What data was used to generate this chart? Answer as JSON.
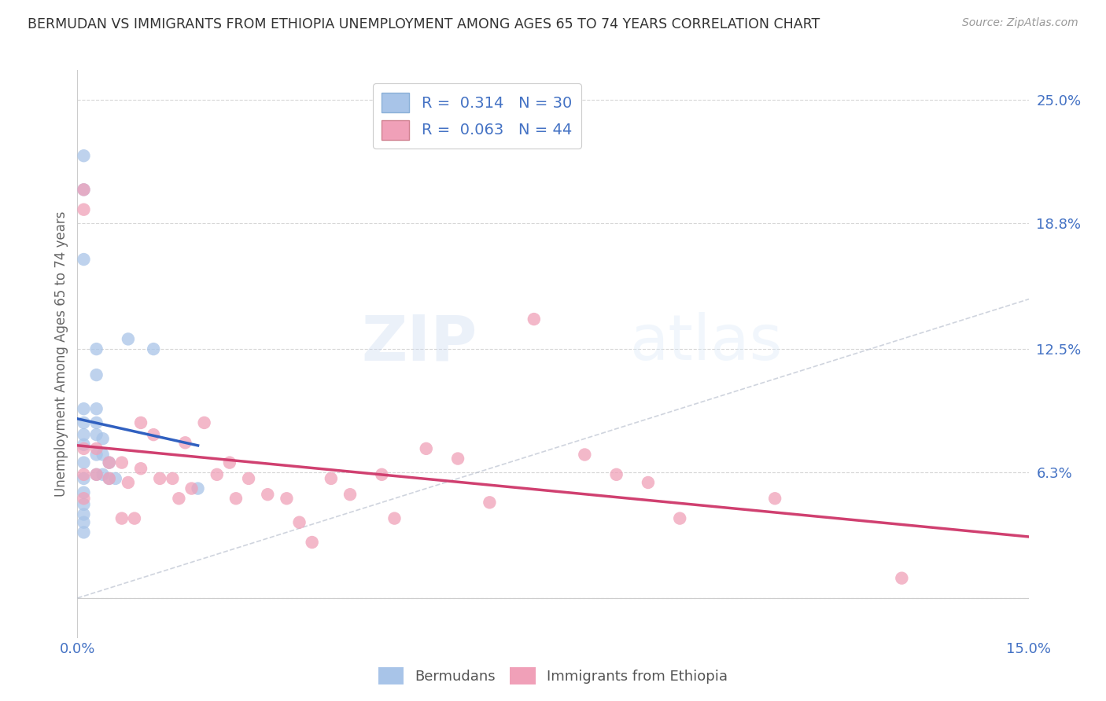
{
  "title": "BERMUDAN VS IMMIGRANTS FROM ETHIOPIA UNEMPLOYMENT AMONG AGES 65 TO 74 YEARS CORRELATION CHART",
  "source": "Source: ZipAtlas.com",
  "ylabel": "Unemployment Among Ages 65 to 74 years",
  "xmin": 0.0,
  "xmax": 0.15,
  "ymin": -0.02,
  "ymax": 0.265,
  "yticks": [
    0.0,
    0.063,
    0.125,
    0.188,
    0.25
  ],
  "ytick_labels": [
    "",
    "6.3%",
    "12.5%",
    "18.8%",
    "25.0%"
  ],
  "xticks": [
    0.0,
    0.05,
    0.1,
    0.15
  ],
  "xtick_labels": [
    "0.0%",
    "",
    "",
    "15.0%"
  ],
  "background_color": "#ffffff",
  "grid_color": "#cccccc",
  "blue_color": "#a8c4e8",
  "pink_color": "#f0a0b8",
  "blue_line_color": "#3060c0",
  "pink_line_color": "#d04070",
  "text_color_blue": "#4472c4",
  "watermark_zip": "ZIP",
  "watermark_atlas": "atlas",
  "legend_R_blue": "0.314",
  "legend_N_blue": "30",
  "legend_R_pink": "0.063",
  "legend_N_pink": "44",
  "bermuda_x": [
    0.001,
    0.001,
    0.001,
    0.001,
    0.001,
    0.001,
    0.001,
    0.001,
    0.001,
    0.001,
    0.001,
    0.001,
    0.001,
    0.001,
    0.003,
    0.003,
    0.003,
    0.003,
    0.003,
    0.003,
    0.003,
    0.004,
    0.004,
    0.004,
    0.005,
    0.005,
    0.006,
    0.008,
    0.012,
    0.019
  ],
  "bermuda_y": [
    0.222,
    0.205,
    0.17,
    0.095,
    0.088,
    0.082,
    0.077,
    0.068,
    0.06,
    0.053,
    0.047,
    0.042,
    0.038,
    0.033,
    0.125,
    0.112,
    0.095,
    0.088,
    0.082,
    0.072,
    0.062,
    0.08,
    0.072,
    0.062,
    0.068,
    0.06,
    0.06,
    0.13,
    0.125,
    0.055
  ],
  "ethiopia_x": [
    0.001,
    0.001,
    0.001,
    0.001,
    0.001,
    0.003,
    0.003,
    0.005,
    0.005,
    0.007,
    0.007,
    0.008,
    0.009,
    0.01,
    0.01,
    0.012,
    0.013,
    0.015,
    0.016,
    0.017,
    0.018,
    0.02,
    0.022,
    0.024,
    0.025,
    0.027,
    0.03,
    0.033,
    0.035,
    0.037,
    0.04,
    0.043,
    0.048,
    0.05,
    0.055,
    0.06,
    0.065,
    0.072,
    0.08,
    0.085,
    0.09,
    0.095,
    0.11,
    0.13
  ],
  "ethiopia_y": [
    0.205,
    0.195,
    0.075,
    0.062,
    0.05,
    0.075,
    0.062,
    0.068,
    0.06,
    0.068,
    0.04,
    0.058,
    0.04,
    0.088,
    0.065,
    0.082,
    0.06,
    0.06,
    0.05,
    0.078,
    0.055,
    0.088,
    0.062,
    0.068,
    0.05,
    0.06,
    0.052,
    0.05,
    0.038,
    0.028,
    0.06,
    0.052,
    0.062,
    0.04,
    0.075,
    0.07,
    0.048,
    0.14,
    0.072,
    0.062,
    0.058,
    0.04,
    0.05,
    0.01
  ]
}
